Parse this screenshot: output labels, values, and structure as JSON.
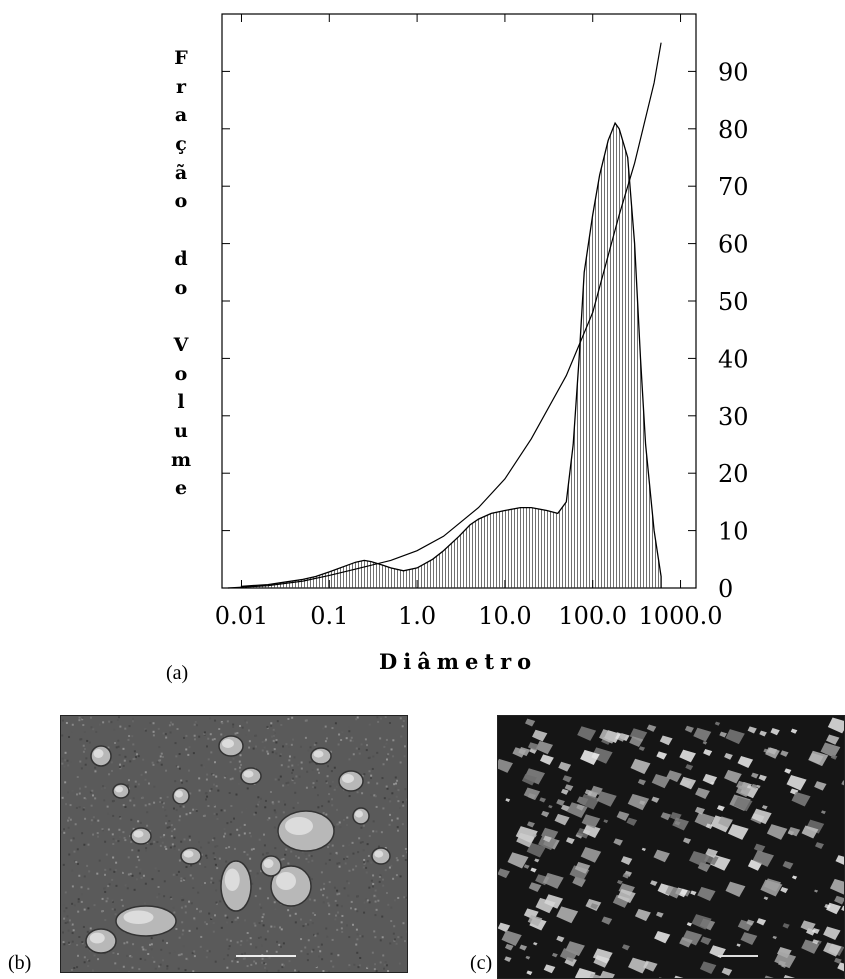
{
  "chart_data": {
    "type": "bar",
    "xlabel": "Diâmetro",
    "ylabel": "Fração do Volume",
    "x_scale": "log",
    "xlim": [
      0.006,
      1500
    ],
    "ylim": [
      0,
      100
    ],
    "x_ticks": [
      "0.01",
      "0.1",
      "1.0",
      "10.0",
      "100.0",
      "1000.0"
    ],
    "y_ticks": [
      "0",
      "10",
      "20",
      "30",
      "40",
      "50",
      "60",
      "70",
      "80",
      "90"
    ],
    "y_axis_position": "right",
    "histogram": {
      "x": [
        0.01,
        0.02,
        0.03,
        0.05,
        0.07,
        0.1,
        0.15,
        0.2,
        0.25,
        0.3,
        0.4,
        0.5,
        0.7,
        1.0,
        1.5,
        2,
        3,
        4,
        5,
        7,
        10,
        15,
        20,
        30,
        40,
        50,
        60,
        70,
        80,
        100,
        120,
        150,
        180,
        200,
        250,
        300,
        350,
        400,
        500,
        600
      ],
      "y": [
        0.3,
        0.6,
        1,
        1.5,
        2,
        2.8,
        3.8,
        4.5,
        4.8,
        4.6,
        4,
        3.5,
        3,
        3.5,
        5,
        6.5,
        9,
        11,
        12,
        13,
        13.5,
        14,
        14,
        13.5,
        13,
        15,
        25,
        40,
        55,
        65,
        72,
        78,
        81,
        80,
        75,
        60,
        40,
        25,
        10,
        2
      ]
    },
    "series": [
      {
        "type": "line",
        "x": [
          0.007,
          0.02,
          0.05,
          0.1,
          0.2,
          0.5,
          1,
          2,
          5,
          10,
          20,
          50,
          100,
          200,
          300,
          500,
          600
        ],
        "y": [
          0,
          0.4,
          1.2,
          2.2,
          3.3,
          4.8,
          6.5,
          9,
          14,
          19,
          26,
          37,
          48,
          65,
          74,
          88,
          95
        ]
      }
    ]
  },
  "panels": {
    "a": "(a)",
    "b": "(b)",
    "c": "(c)"
  }
}
